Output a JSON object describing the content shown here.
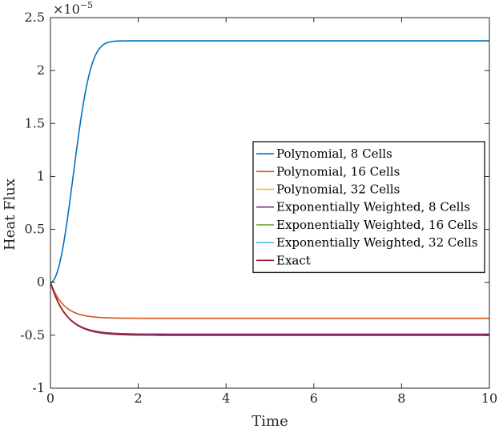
{
  "chart_data": {
    "type": "line",
    "title": "",
    "xlabel": "Time",
    "ylabel": "Heat Flux",
    "xlim": [
      0,
      10
    ],
    "ylim": [
      -1,
      2.5
    ],
    "y_exponent": {
      "base": "×10",
      "power": "−5"
    },
    "x_ticks": [
      "0",
      "2",
      "4",
      "6",
      "8",
      "10"
    ],
    "y_ticks": [
      "-1",
      "-0.5",
      "0",
      "0.5",
      "1",
      "1.5",
      "2",
      "2.5"
    ],
    "grid": false,
    "legend_position": "right",
    "series": [
      {
        "name": "Polynomial, 8 Cells",
        "color": "#0072BD",
        "steady_value": 2.28,
        "time_constant": 0.55,
        "shape": "sigmoid"
      },
      {
        "name": "Polynomial, 16 Cells",
        "color": "#D95319",
        "steady_value": -0.34,
        "time_constant": 0.3,
        "shape": "exp"
      },
      {
        "name": "Polynomial, 32 Cells",
        "color": "#EDB120",
        "steady_value": -0.49,
        "time_constant": 0.35,
        "shape": "exp"
      },
      {
        "name": "Exponentially Weighted, 8 Cells",
        "color": "#7E2F8E",
        "steady_value": -0.49,
        "time_constant": 0.36,
        "shape": "exp"
      },
      {
        "name": "Exponentially Weighted, 16 Cells",
        "color": "#77AC30",
        "steady_value": -0.5,
        "time_constant": 0.37,
        "shape": "exp"
      },
      {
        "name": "Exponentially Weighted, 32 Cells",
        "color": "#4DBEEE",
        "steady_value": -0.5,
        "time_constant": 0.37,
        "shape": "exp"
      },
      {
        "name": "Exact",
        "color": "#A2142F",
        "steady_value": -0.5,
        "time_constant": 0.37,
        "shape": "exp"
      }
    ]
  }
}
